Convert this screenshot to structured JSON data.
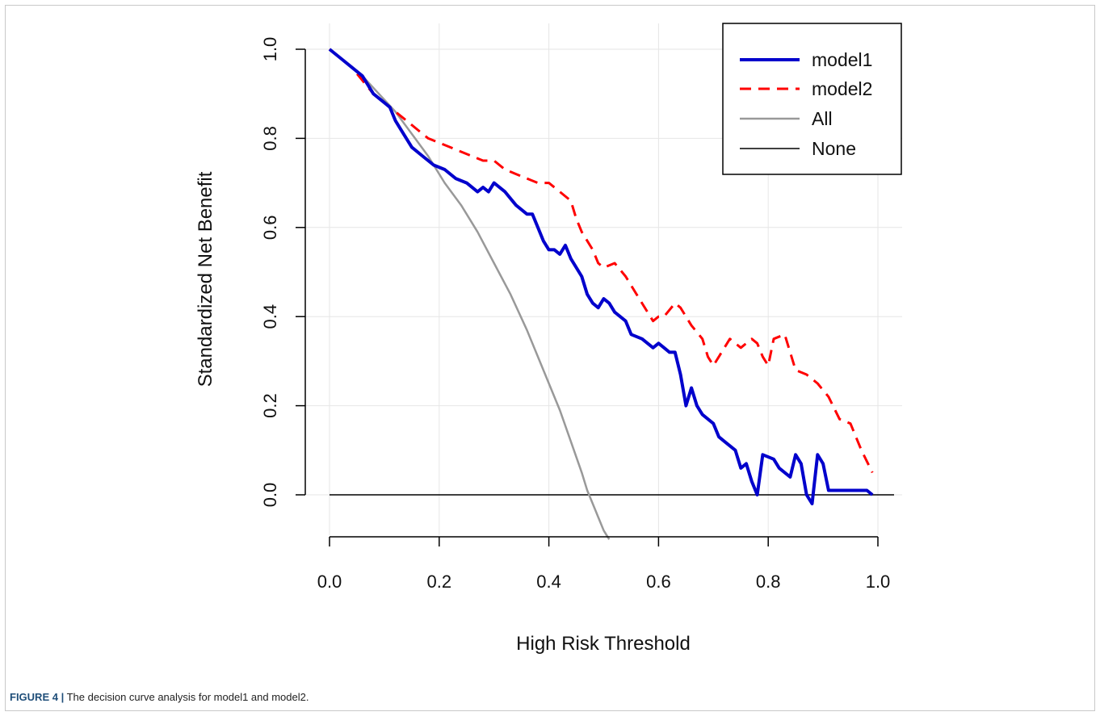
{
  "caption": {
    "label": "FIGURE 4 |",
    "text": "The decision curve analysis for model1 and model2."
  },
  "chart_data": {
    "type": "line",
    "xlabel": "High Risk Threshold",
    "ylabel": "Standardized Net Benefit",
    "xlim": [
      0,
      1
    ],
    "ylim": [
      -0.1,
      1.0
    ],
    "xticks": [
      0.0,
      0.2,
      0.4,
      0.6,
      0.8,
      1.0
    ],
    "xtick_labels": [
      "0.0",
      "0.2",
      "0.4",
      "0.6",
      "0.8",
      "1.0"
    ],
    "yticks": [
      0.0,
      0.2,
      0.4,
      0.6,
      0.8,
      1.0
    ],
    "ytick_labels": [
      "0.0",
      "0.2",
      "0.4",
      "0.6",
      "0.8",
      "1.0"
    ],
    "grid": true,
    "legend_position": "top-right",
    "series": [
      {
        "name": "model1",
        "color": "#0000cc",
        "style": "solid",
        "points": [
          [
            0.0,
            1.0
          ],
          [
            0.02,
            0.98
          ],
          [
            0.04,
            0.96
          ],
          [
            0.06,
            0.94
          ],
          [
            0.08,
            0.9
          ],
          [
            0.1,
            0.88
          ],
          [
            0.11,
            0.87
          ],
          [
            0.12,
            0.84
          ],
          [
            0.13,
            0.82
          ],
          [
            0.14,
            0.8
          ],
          [
            0.15,
            0.78
          ],
          [
            0.17,
            0.76
          ],
          [
            0.19,
            0.74
          ],
          [
            0.21,
            0.73
          ],
          [
            0.23,
            0.71
          ],
          [
            0.25,
            0.7
          ],
          [
            0.27,
            0.68
          ],
          [
            0.28,
            0.69
          ],
          [
            0.29,
            0.68
          ],
          [
            0.3,
            0.7
          ],
          [
            0.32,
            0.68
          ],
          [
            0.34,
            0.65
          ],
          [
            0.36,
            0.63
          ],
          [
            0.37,
            0.63
          ],
          [
            0.38,
            0.6
          ],
          [
            0.39,
            0.57
          ],
          [
            0.4,
            0.55
          ],
          [
            0.41,
            0.55
          ],
          [
            0.42,
            0.54
          ],
          [
            0.43,
            0.56
          ],
          [
            0.44,
            0.53
          ],
          [
            0.46,
            0.49
          ],
          [
            0.47,
            0.45
          ],
          [
            0.48,
            0.43
          ],
          [
            0.49,
            0.42
          ],
          [
            0.5,
            0.44
          ],
          [
            0.51,
            0.43
          ],
          [
            0.52,
            0.41
          ],
          [
            0.54,
            0.39
          ],
          [
            0.55,
            0.36
          ],
          [
            0.57,
            0.35
          ],
          [
            0.58,
            0.34
          ],
          [
            0.59,
            0.33
          ],
          [
            0.6,
            0.34
          ],
          [
            0.61,
            0.33
          ],
          [
            0.62,
            0.32
          ],
          [
            0.63,
            0.32
          ],
          [
            0.64,
            0.27
          ],
          [
            0.65,
            0.2
          ],
          [
            0.66,
            0.24
          ],
          [
            0.67,
            0.2
          ],
          [
            0.68,
            0.18
          ],
          [
            0.7,
            0.16
          ],
          [
            0.71,
            0.13
          ],
          [
            0.72,
            0.12
          ],
          [
            0.74,
            0.1
          ],
          [
            0.75,
            0.06
          ],
          [
            0.76,
            0.07
          ],
          [
            0.77,
            0.03
          ],
          [
            0.78,
            0.0
          ],
          [
            0.79,
            0.09
          ],
          [
            0.81,
            0.08
          ],
          [
            0.82,
            0.06
          ],
          [
            0.83,
            0.05
          ],
          [
            0.84,
            0.04
          ],
          [
            0.85,
            0.09
          ],
          [
            0.86,
            0.07
          ],
          [
            0.87,
            0.0
          ],
          [
            0.88,
            -0.02
          ],
          [
            0.89,
            0.09
          ],
          [
            0.9,
            0.07
          ],
          [
            0.91,
            0.01
          ],
          [
            0.93,
            0.01
          ],
          [
            0.95,
            0.01
          ],
          [
            0.97,
            0.01
          ],
          [
            0.98,
            0.01
          ],
          [
            0.99,
            0.0
          ]
        ]
      },
      {
        "name": "model2",
        "color": "#ff0000",
        "style": "dashed",
        "points": [
          [
            0.0,
            1.0
          ],
          [
            0.02,
            0.98
          ],
          [
            0.04,
            0.96
          ],
          [
            0.06,
            0.93
          ],
          [
            0.08,
            0.9
          ],
          [
            0.1,
            0.88
          ],
          [
            0.12,
            0.86
          ],
          [
            0.14,
            0.84
          ],
          [
            0.16,
            0.82
          ],
          [
            0.18,
            0.8
          ],
          [
            0.2,
            0.79
          ],
          [
            0.22,
            0.78
          ],
          [
            0.24,
            0.77
          ],
          [
            0.26,
            0.76
          ],
          [
            0.28,
            0.75
          ],
          [
            0.3,
            0.75
          ],
          [
            0.32,
            0.73
          ],
          [
            0.34,
            0.72
          ],
          [
            0.36,
            0.71
          ],
          [
            0.38,
            0.7
          ],
          [
            0.4,
            0.7
          ],
          [
            0.42,
            0.68
          ],
          [
            0.44,
            0.66
          ],
          [
            0.45,
            0.62
          ],
          [
            0.46,
            0.59
          ],
          [
            0.48,
            0.55
          ],
          [
            0.49,
            0.52
          ],
          [
            0.5,
            0.51
          ],
          [
            0.52,
            0.52
          ],
          [
            0.54,
            0.49
          ],
          [
            0.56,
            0.45
          ],
          [
            0.58,
            0.41
          ],
          [
            0.59,
            0.39
          ],
          [
            0.6,
            0.4
          ],
          [
            0.61,
            0.4
          ],
          [
            0.63,
            0.43
          ],
          [
            0.64,
            0.42
          ],
          [
            0.66,
            0.38
          ],
          [
            0.68,
            0.35
          ],
          [
            0.69,
            0.31
          ],
          [
            0.7,
            0.29
          ],
          [
            0.71,
            0.31
          ],
          [
            0.73,
            0.35
          ],
          [
            0.75,
            0.33
          ],
          [
            0.77,
            0.35
          ],
          [
            0.78,
            0.34
          ],
          [
            0.79,
            0.31
          ],
          [
            0.8,
            0.29
          ],
          [
            0.81,
            0.35
          ],
          [
            0.83,
            0.36
          ],
          [
            0.85,
            0.28
          ],
          [
            0.87,
            0.27
          ],
          [
            0.89,
            0.25
          ],
          [
            0.91,
            0.22
          ],
          [
            0.93,
            0.17
          ],
          [
            0.95,
            0.16
          ],
          [
            0.97,
            0.1
          ],
          [
            0.99,
            0.05
          ]
        ]
      },
      {
        "name": "All",
        "color": "#999999",
        "style": "solid",
        "points": [
          [
            0.0,
            1.0
          ],
          [
            0.03,
            0.97
          ],
          [
            0.06,
            0.94
          ],
          [
            0.09,
            0.9
          ],
          [
            0.12,
            0.86
          ],
          [
            0.15,
            0.81
          ],
          [
            0.18,
            0.76
          ],
          [
            0.21,
            0.7
          ],
          [
            0.24,
            0.65
          ],
          [
            0.27,
            0.59
          ],
          [
            0.3,
            0.52
          ],
          [
            0.33,
            0.45
          ],
          [
            0.36,
            0.37
          ],
          [
            0.38,
            0.31
          ],
          [
            0.4,
            0.25
          ],
          [
            0.42,
            0.19
          ],
          [
            0.44,
            0.12
          ],
          [
            0.46,
            0.05
          ],
          [
            0.47,
            0.01
          ],
          [
            0.48,
            -0.02
          ],
          [
            0.49,
            -0.05
          ],
          [
            0.5,
            -0.08
          ],
          [
            0.51,
            -0.1
          ]
        ]
      },
      {
        "name": "None",
        "color": "#000000",
        "style": "solid",
        "points": [
          [
            0.0,
            0.0
          ],
          [
            1.0,
            0.0
          ]
        ]
      }
    ]
  }
}
